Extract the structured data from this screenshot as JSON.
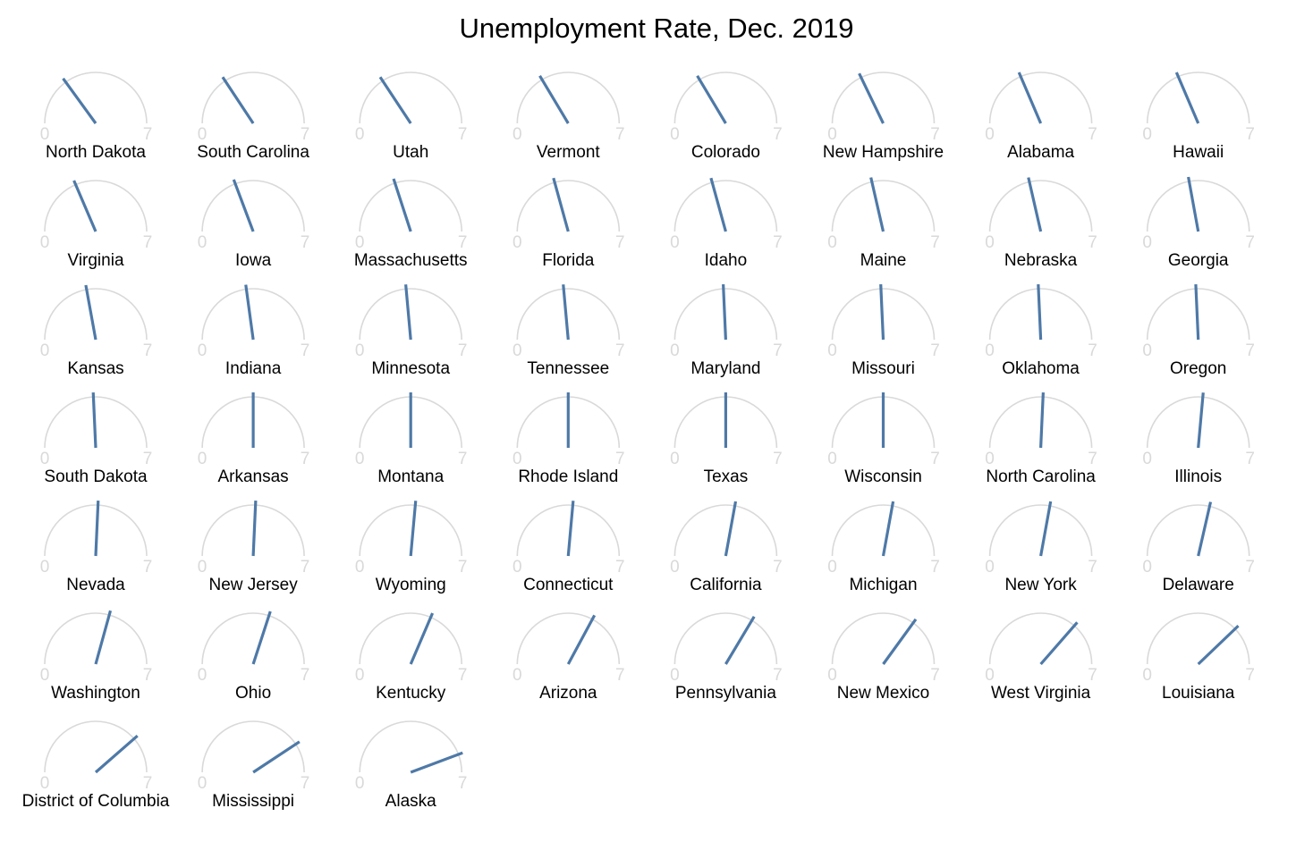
{
  "chart_data": {
    "type": "gauge",
    "title": "Unemployment Rate, Dec. 2019",
    "range": [
      0,
      7
    ],
    "tick_labels": [
      "0",
      "7"
    ],
    "needle_color": "#4e79a7",
    "dial_color": "#d9d9d9",
    "columns": 8,
    "states": [
      {
        "name": "North Dakota",
        "value": 2.1
      },
      {
        "name": "South Carolina",
        "value": 2.2
      },
      {
        "name": "Utah",
        "value": 2.2
      },
      {
        "name": "Vermont",
        "value": 2.3
      },
      {
        "name": "Colorado",
        "value": 2.3
      },
      {
        "name": "New Hampshire",
        "value": 2.5
      },
      {
        "name": "Alabama",
        "value": 2.6
      },
      {
        "name": "Hawaii",
        "value": 2.6
      },
      {
        "name": "Virginia",
        "value": 2.6
      },
      {
        "name": "Iowa",
        "value": 2.7
      },
      {
        "name": "Massachusetts",
        "value": 2.8
      },
      {
        "name": "Florida",
        "value": 2.9
      },
      {
        "name": "Idaho",
        "value": 2.9
      },
      {
        "name": "Maine",
        "value": 3.0
      },
      {
        "name": "Nebraska",
        "value": 3.0
      },
      {
        "name": "Georgia",
        "value": 3.1
      },
      {
        "name": "Kansas",
        "value": 3.1
      },
      {
        "name": "Indiana",
        "value": 3.2
      },
      {
        "name": "Minnesota",
        "value": 3.3
      },
      {
        "name": "Tennessee",
        "value": 3.3
      },
      {
        "name": "Maryland",
        "value": 3.4
      },
      {
        "name": "Missouri",
        "value": 3.4
      },
      {
        "name": "Oklahoma",
        "value": 3.4
      },
      {
        "name": "Oregon",
        "value": 3.4
      },
      {
        "name": "South Dakota",
        "value": 3.4
      },
      {
        "name": "Arkansas",
        "value": 3.5
      },
      {
        "name": "Montana",
        "value": 3.5
      },
      {
        "name": "Rhode Island",
        "value": 3.5
      },
      {
        "name": "Texas",
        "value": 3.5
      },
      {
        "name": "Wisconsin",
        "value": 3.5
      },
      {
        "name": "North Carolina",
        "value": 3.6
      },
      {
        "name": "Illinois",
        "value": 3.7
      },
      {
        "name": "Nevada",
        "value": 3.6
      },
      {
        "name": "New Jersey",
        "value": 3.6
      },
      {
        "name": "Wyoming",
        "value": 3.7
      },
      {
        "name": "Connecticut",
        "value": 3.7
      },
      {
        "name": "California",
        "value": 3.9
      },
      {
        "name": "Michigan",
        "value": 3.9
      },
      {
        "name": "New York",
        "value": 3.9
      },
      {
        "name": "Delaware",
        "value": 4.0
      },
      {
        "name": "Washington",
        "value": 4.1
      },
      {
        "name": "Ohio",
        "value": 4.2
      },
      {
        "name": "Kentucky",
        "value": 4.4
      },
      {
        "name": "Arizona",
        "value": 4.6
      },
      {
        "name": "Pennsylvania",
        "value": 4.7
      },
      {
        "name": "New Mexico",
        "value": 4.9
      },
      {
        "name": "West Virginia",
        "value": 5.1
      },
      {
        "name": "Louisiana",
        "value": 5.3
      },
      {
        "name": "District of Columbia",
        "value": 5.4
      },
      {
        "name": "Mississippi",
        "value": 5.7
      },
      {
        "name": "Alaska",
        "value": 6.2
      }
    ]
  }
}
